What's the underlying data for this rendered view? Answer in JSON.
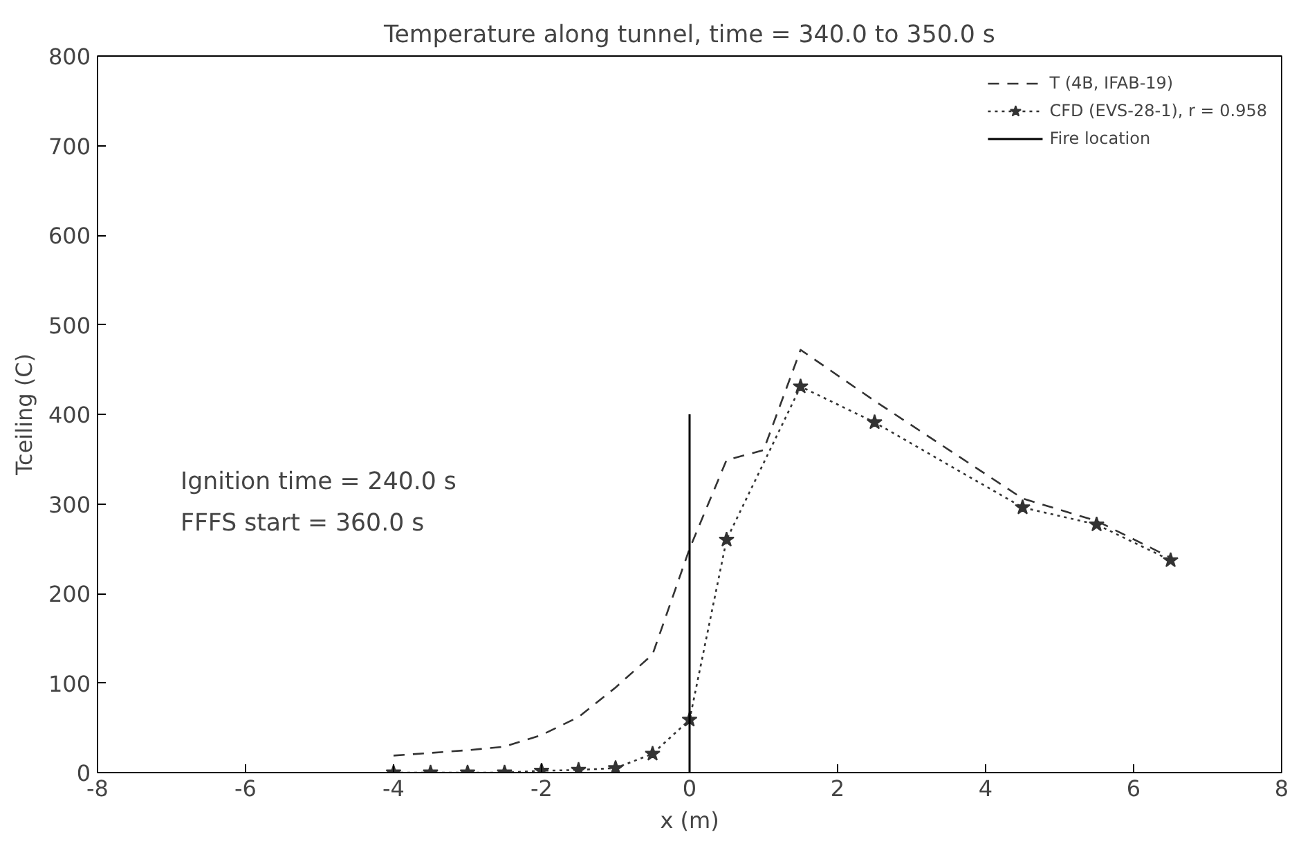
{
  "chart_data": {
    "type": "line",
    "title": "Temperature along tunnel, time = 340.0 to 350.0 s",
    "xlabel": "x (m)",
    "ylabel": "Tceiling (C)",
    "series": [
      {
        "name": "T (4B, IFAB-19)",
        "color": "#333333",
        "line_style": "dashed",
        "marker": "none",
        "x": [
          -4,
          -3.5,
          -3,
          -2.5,
          -2,
          -1.5,
          -1,
          -0.5,
          0,
          0.5,
          1,
          1.5,
          2.5,
          4.5,
          5.5,
          6.5
        ],
        "values": [
          19,
          22,
          25,
          29,
          42,
          62,
          95,
          132,
          250,
          349,
          360,
          472,
          415,
          306,
          281,
          240
        ]
      },
      {
        "name": "CFD (EVS-28-1), r = 0.958",
        "color": "#333333",
        "line_style": "dotted",
        "marker": "star",
        "x": [
          -4,
          -3.5,
          -3,
          -2.5,
          -2,
          -1.5,
          -1,
          -0.5,
          0,
          0.5,
          1.5,
          2.5,
          4.5,
          5.5,
          6.5
        ],
        "values": [
          0,
          0,
          0,
          0,
          2,
          3,
          5,
          21,
          59,
          260,
          431,
          391,
          296,
          277,
          237
        ]
      },
      {
        "name": "Fire location",
        "color": "#000000",
        "line_style": "solid",
        "marker": "none",
        "x": [
          0,
          0
        ],
        "values": [
          0,
          400
        ]
      }
    ],
    "annotations": [
      "Ignition time = 240.0 s",
      "FFFS start = 360.0 s"
    ],
    "xlim": [
      -8,
      8
    ],
    "xticks": [
      -8,
      -6,
      -4,
      -2,
      0,
      2,
      4,
      6,
      8
    ],
    "ylim": [
      0,
      800
    ],
    "yticks": [
      0,
      100,
      200,
      300,
      400,
      500,
      600,
      700,
      800
    ],
    "grid": false,
    "legend": "top right"
  }
}
